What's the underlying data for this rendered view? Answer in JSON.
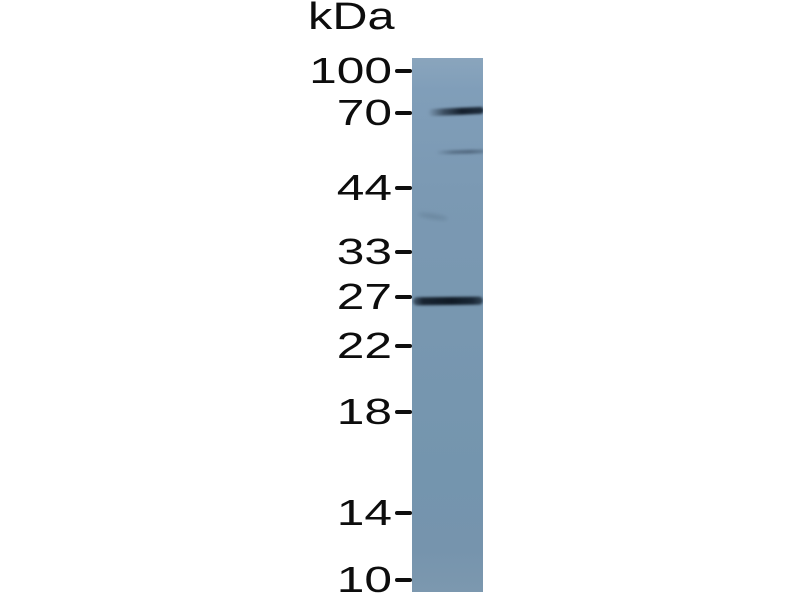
{
  "figure": {
    "type": "western-blot",
    "unit_label": "kDa",
    "ladder": [
      {
        "label": "100",
        "kda": 100
      },
      {
        "label": "70",
        "kda": 70
      },
      {
        "label": "44",
        "kda": 44
      },
      {
        "label": "33",
        "kda": 33
      },
      {
        "label": "27",
        "kda": 27
      },
      {
        "label": "22",
        "kda": 22
      },
      {
        "label": "18",
        "kda": 18
      },
      {
        "label": "14",
        "kda": 14
      },
      {
        "label": "10",
        "kda": 10
      }
    ],
    "lanes": 1,
    "bands": [
      {
        "approx_kda": 70,
        "intensity": "strong",
        "note": "dark band aligned with 70 kDa marker"
      },
      {
        "approx_kda": 55,
        "intensity": "faint",
        "note": "weak band between 70 and 44 kDa markers"
      },
      {
        "approx_kda": 27,
        "intensity": "strong",
        "note": "dark band aligned with 27 kDa marker spanning full lane width"
      }
    ],
    "colors": {
      "background": "#ffffff",
      "membrane_top": "#8aa5bd",
      "membrane_bottom": "#7694ad",
      "band_dark": "#0e1824",
      "text": "#0d0d0d"
    }
  }
}
